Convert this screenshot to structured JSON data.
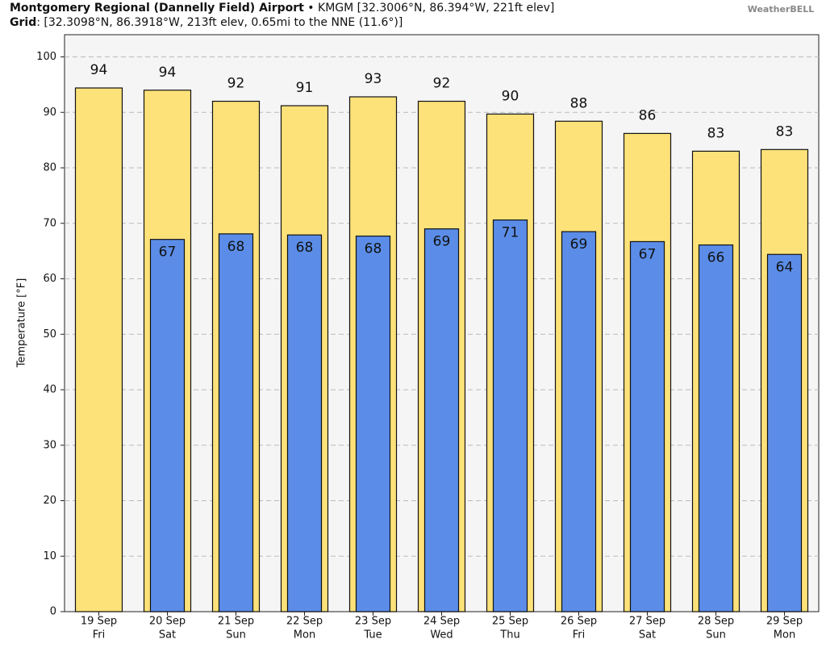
{
  "chart_data": {
    "type": "bar",
    "title": "Montgomery Regional (Dannelly Field) Airport",
    "title_detail": " • KMGM [32.3006°N, 86.394°W, 221ft elev]",
    "subtitle": "Grid",
    "subtitle_detail": ": [32.3098°N, 86.3918°W, 213ft elev, 0.65mi to the NNE (11.6°)]",
    "logo": "WeatherBELL",
    "y_label": "Temperature [°F]",
    "categories": [
      [
        "19 Sep",
        "Fri"
      ],
      [
        "20 Sep",
        "Sat"
      ],
      [
        "21 Sep",
        "Sun"
      ],
      [
        "22 Sep",
        "Mon"
      ],
      [
        "23 Sep",
        "Tue"
      ],
      [
        "24 Sep",
        "Wed"
      ],
      [
        "25 Sep",
        "Thu"
      ],
      [
        "26 Sep",
        "Fri"
      ],
      [
        "27 Sep",
        "Sat"
      ],
      [
        "28 Sep",
        "Sun"
      ],
      [
        "29 Sep",
        "Mon"
      ]
    ],
    "series": [
      {
        "color": "#fde27a",
        "values": [
          94.4,
          94,
          92,
          91.2,
          92.8,
          92,
          89.7,
          88.4,
          86.2,
          83,
          83.3
        ],
        "value_labels": [
          "94",
          "94",
          "92",
          "91",
          "93",
          "92",
          "90",
          "88",
          "86",
          "83",
          "83"
        ]
      },
      {
        "color": "#5b8de8",
        "values": [
          null,
          67.1,
          68.1,
          67.9,
          67.7,
          69,
          70.6,
          68.5,
          66.7,
          66.1,
          64.4
        ],
        "value_labels": [
          null,
          "67",
          "68",
          "68",
          "68",
          "69",
          "71",
          "69",
          "67",
          "66",
          "64"
        ]
      }
    ],
    "ylim": [
      0,
      104
    ],
    "yticks": [
      0,
      10,
      20,
      30,
      40,
      50,
      60,
      70,
      80,
      90,
      100
    ],
    "grid": true
  }
}
